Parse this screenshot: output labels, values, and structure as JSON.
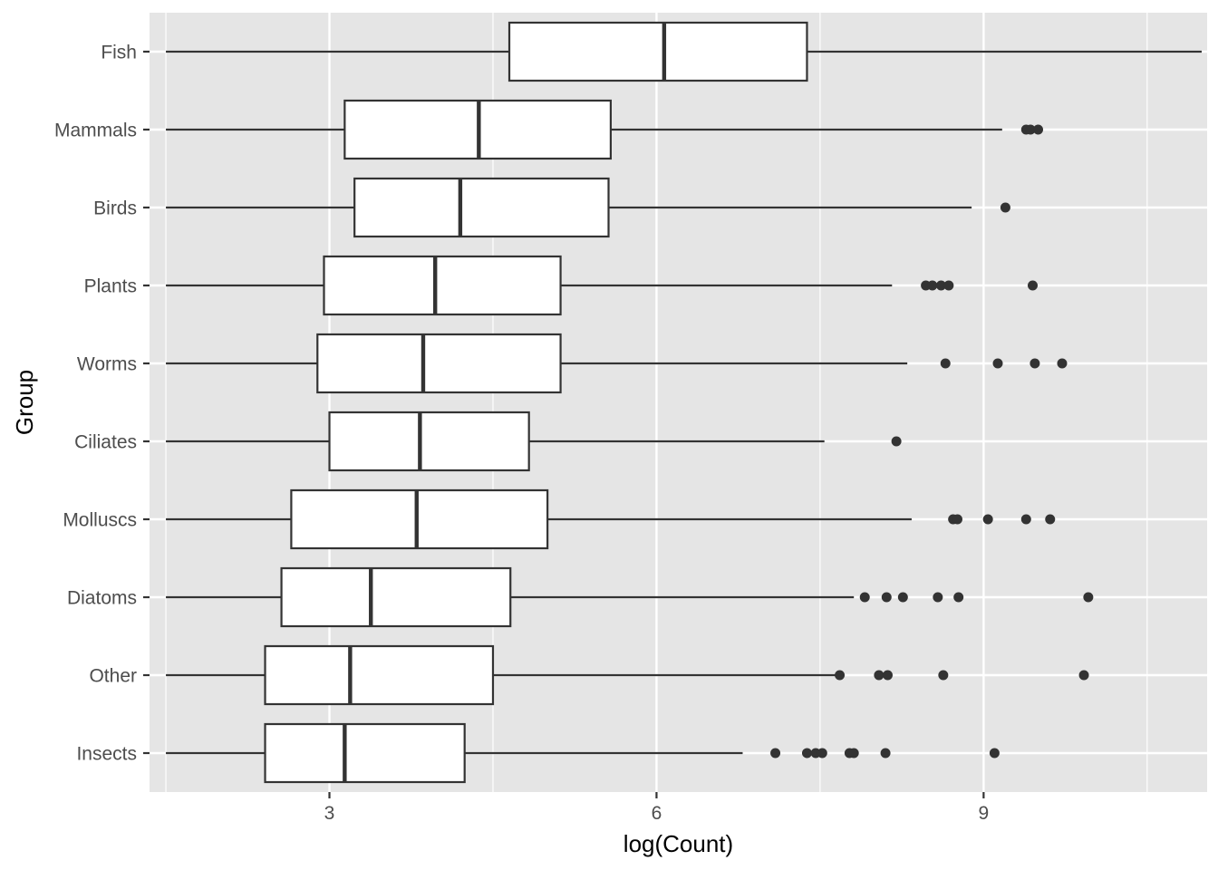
{
  "chart_data": {
    "type": "boxplot",
    "orientation": "horizontal",
    "xlabel": "log(Count)",
    "ylabel": "Group",
    "xlim": [
      1.35,
      11.05
    ],
    "x_ticks": [
      3,
      6,
      9
    ],
    "x_tick_labels": [
      "3",
      "6",
      "9"
    ],
    "grid": true,
    "colors": {
      "panel": "#e5e5e5",
      "grid": "#ffffff",
      "box_fill": "#ffffff",
      "stroke": "#333333",
      "outlier": "#333333"
    },
    "categories": [
      "Fish",
      "Mammals",
      "Birds",
      "Plants",
      "Worms",
      "Ciliates",
      "Molluscs",
      "Diatoms",
      "Other",
      "Insects"
    ],
    "boxes": [
      {
        "group": "Fish",
        "whisker_low": 1.5,
        "q1": 4.65,
        "median": 6.07,
        "q3": 7.38,
        "whisker_high": 11.0,
        "outliers": []
      },
      {
        "group": "Mammals",
        "whisker_low": 1.5,
        "q1": 3.14,
        "median": 4.37,
        "q3": 5.58,
        "whisker_high": 9.17,
        "outliers": [
          9.39,
          9.43,
          9.5
        ]
      },
      {
        "group": "Birds",
        "whisker_low": 1.5,
        "q1": 3.23,
        "median": 4.2,
        "q3": 5.56,
        "whisker_high": 8.89,
        "outliers": [
          9.2
        ]
      },
      {
        "group": "Plants",
        "whisker_low": 1.5,
        "q1": 2.95,
        "median": 3.97,
        "q3": 5.12,
        "whisker_high": 8.16,
        "outliers": [
          8.47,
          8.53,
          8.61,
          8.68,
          9.45
        ]
      },
      {
        "group": "Worms",
        "whisker_low": 1.5,
        "q1": 2.89,
        "median": 3.86,
        "q3": 5.12,
        "whisker_high": 8.3,
        "outliers": [
          8.65,
          9.13,
          9.47,
          9.72
        ]
      },
      {
        "group": "Ciliates",
        "whisker_low": 1.5,
        "q1": 3.0,
        "median": 3.83,
        "q3": 4.83,
        "whisker_high": 7.54,
        "outliers": [
          8.2
        ]
      },
      {
        "group": "Molluscs",
        "whisker_low": 1.5,
        "q1": 2.65,
        "median": 3.8,
        "q3": 5.0,
        "whisker_high": 8.34,
        "outliers": [
          8.72,
          8.76,
          9.04,
          9.39,
          9.61
        ]
      },
      {
        "group": "Diatoms",
        "whisker_low": 1.5,
        "q1": 2.56,
        "median": 3.38,
        "q3": 4.66,
        "whisker_high": 7.81,
        "outliers": [
          7.91,
          8.11,
          8.26,
          8.58,
          8.77,
          9.96
        ]
      },
      {
        "group": "Other",
        "whisker_low": 1.5,
        "q1": 2.41,
        "median": 3.19,
        "q3": 4.5,
        "whisker_high": 7.64,
        "outliers": [
          7.68,
          8.04,
          8.12,
          8.63,
          9.92
        ]
      },
      {
        "group": "Insects",
        "whisker_low": 1.5,
        "q1": 2.41,
        "median": 3.14,
        "q3": 4.24,
        "whisker_high": 6.79,
        "outliers": [
          7.09,
          7.38,
          7.46,
          7.52,
          7.77,
          7.81,
          8.1,
          9.1
        ]
      }
    ]
  }
}
